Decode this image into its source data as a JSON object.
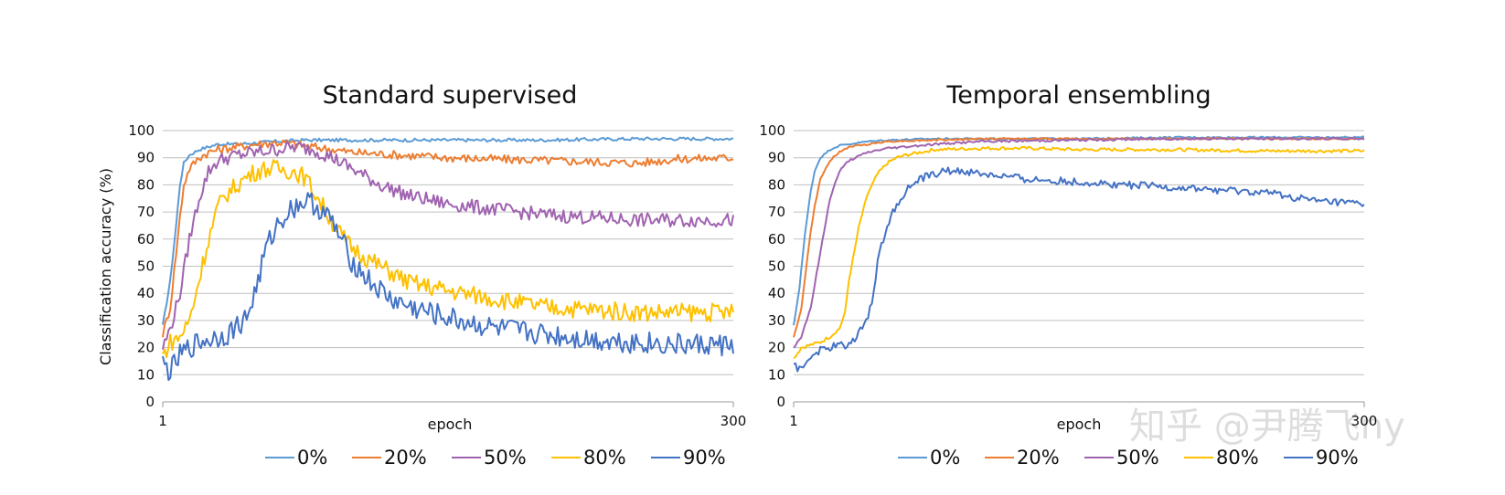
{
  "watermark": "知乎 @尹腾飞ny",
  "chart_data": [
    {
      "type": "line",
      "title": "Standard supervised",
      "xlabel": "epoch",
      "ylabel": "Classification accuracy (%)",
      "xlim": [
        1,
        300
      ],
      "ylim": [
        0,
        100
      ],
      "x_ticks": [
        "1",
        "300"
      ],
      "y_ticks": [
        0,
        10,
        20,
        30,
        40,
        50,
        60,
        70,
        80,
        90,
        100
      ],
      "grid": "horizontal",
      "legend_position": "bottom",
      "series": [
        {
          "name": "0%",
          "color": "#5b9bd5",
          "x": [
            1,
            5,
            8,
            10,
            12,
            15,
            20,
            25,
            30,
            40,
            50,
            60,
            75,
            100,
            150,
            200,
            250,
            300
          ],
          "y": [
            28,
            45,
            65,
            80,
            88,
            91,
            93,
            94,
            95,
            95,
            95.5,
            96,
            96.5,
            96.5,
            96.5,
            96.5,
            97,
            97
          ]
        },
        {
          "name": "20%",
          "color": "#ed7d31",
          "x": [
            1,
            5,
            10,
            12,
            15,
            20,
            25,
            30,
            40,
            50,
            60,
            65,
            70,
            80,
            100,
            150,
            200,
            250,
            270,
            300
          ],
          "y": [
            25,
            35,
            68,
            80,
            86,
            90,
            92,
            93,
            94,
            95,
            95.5,
            95.5,
            95,
            94,
            92,
            90,
            89,
            88,
            89.5,
            90
          ]
        },
        {
          "name": "50%",
          "color": "#a063b0",
          "x": [
            1,
            5,
            10,
            15,
            20,
            25,
            30,
            40,
            50,
            60,
            70,
            80,
            90,
            100,
            115,
            130,
            150,
            175,
            200,
            225,
            250,
            275,
            300
          ],
          "y": [
            20,
            27,
            40,
            60,
            75,
            85,
            89,
            91,
            92,
            93,
            94,
            93,
            90,
            86,
            80,
            76,
            73,
            71,
            69,
            68,
            67,
            67,
            67
          ]
        },
        {
          "name": "80%",
          "color": "#ffc000",
          "x": [
            1,
            5,
            10,
            15,
            20,
            25,
            30,
            35,
            40,
            45,
            50,
            55,
            60,
            70,
            75,
            80,
            85,
            90,
            95,
            100,
            110,
            120,
            130,
            150,
            175,
            200,
            225,
            250,
            270,
            300
          ],
          "y": [
            17,
            22,
            24,
            30,
            45,
            60,
            72,
            77,
            80,
            83,
            85,
            86,
            86,
            85,
            83,
            78,
            72,
            66,
            61,
            57,
            52,
            48,
            44,
            41,
            38,
            35,
            34,
            33,
            33,
            33
          ]
        },
        {
          "name": "90%",
          "color": "#4472c4",
          "x": [
            1,
            5,
            10,
            15,
            20,
            25,
            30,
            35,
            40,
            45,
            50,
            55,
            60,
            65,
            70,
            75,
            80,
            85,
            90,
            95,
            100,
            110,
            120,
            130,
            150,
            175,
            200,
            225,
            250,
            270,
            300
          ],
          "y": [
            14,
            11,
            17,
            20,
            22,
            23,
            24,
            25,
            28,
            31,
            42,
            56,
            64,
            69,
            72,
            74,
            73,
            70,
            66,
            59,
            52,
            44,
            38,
            35,
            31,
            27,
            25,
            23,
            22,
            21,
            21
          ]
        }
      ]
    },
    {
      "type": "line",
      "title": "Temporal ensembling",
      "xlabel": "epoch",
      "ylabel": "",
      "xlim": [
        1,
        300
      ],
      "ylim": [
        0,
        100
      ],
      "x_ticks": [
        "1",
        "300"
      ],
      "y_ticks": [
        0,
        10,
        20,
        30,
        40,
        50,
        60,
        70,
        80,
        90,
        100
      ],
      "grid": "horizontal",
      "legend_position": "bottom",
      "series": [
        {
          "name": "0%",
          "color": "#5b9bd5",
          "x": [
            1,
            4,
            7,
            10,
            12,
            15,
            20,
            25,
            30,
            40,
            50,
            75,
            100,
            150,
            200,
            250,
            300
          ],
          "y": [
            28,
            42,
            62,
            78,
            85,
            90,
            93,
            94.5,
            95,
            96,
            96.5,
            97,
            97,
            97,
            97.5,
            97.5,
            97.5
          ]
        },
        {
          "name": "20%",
          "color": "#ed7d31",
          "x": [
            1,
            5,
            8,
            10,
            12,
            15,
            20,
            25,
            30,
            40,
            50,
            75,
            100,
            150,
            200,
            250,
            300
          ],
          "y": [
            24,
            34,
            52,
            63,
            72,
            82,
            89,
            92,
            94,
            95,
            96,
            96.5,
            97,
            97,
            97,
            97,
            97
          ]
        },
        {
          "name": "50%",
          "color": "#a063b0",
          "x": [
            1,
            5,
            10,
            15,
            20,
            25,
            30,
            40,
            50,
            75,
            100,
            150,
            200,
            250,
            300
          ],
          "y": [
            20,
            24,
            35,
            55,
            75,
            85,
            89,
            92,
            93.5,
            95,
            96,
            96.5,
            97,
            97,
            97
          ]
        },
        {
          "name": "80%",
          "color": "#ffc000",
          "x": [
            1,
            5,
            10,
            15,
            20,
            25,
            28,
            30,
            33,
            35,
            38,
            40,
            45,
            50,
            55,
            60,
            75,
            100,
            125,
            150,
            200,
            250,
            300
          ],
          "y": [
            16,
            20,
            21,
            22,
            24,
            27,
            33,
            45,
            56,
            64,
            72,
            77,
            84,
            88,
            90,
            91,
            93,
            93.5,
            93.5,
            93,
            93,
            92.5,
            92.5
          ]
        },
        {
          "name": "90%",
          "color": "#4472c4",
          "x": [
            1,
            5,
            10,
            15,
            20,
            25,
            30,
            35,
            38,
            40,
            43,
            45,
            48,
            50,
            55,
            60,
            65,
            70,
            75,
            80,
            90,
            100,
            125,
            150,
            175,
            200,
            225,
            250,
            275,
            300
          ],
          "y": [
            13,
            12,
            17,
            19,
            20,
            21,
            21,
            25,
            30,
            32,
            40,
            52,
            60,
            65,
            73,
            78,
            81,
            83,
            84,
            85,
            85,
            84,
            82,
            81,
            80,
            79,
            78,
            77,
            74,
            73
          ]
        }
      ]
    }
  ]
}
